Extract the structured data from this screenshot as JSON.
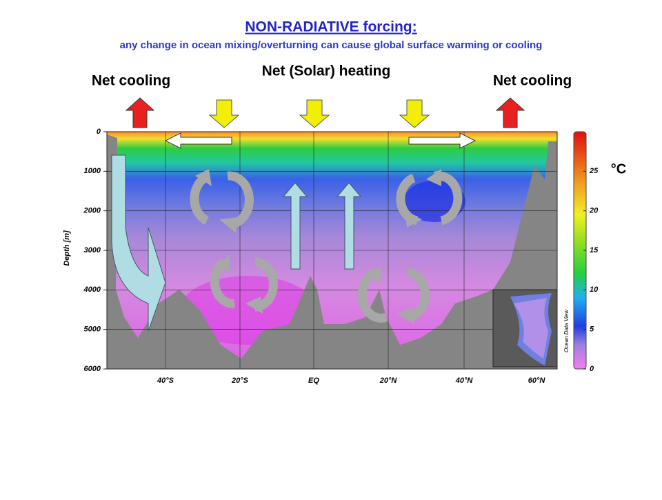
{
  "header": {
    "title": "NON-RADIATIVE forcing:",
    "subtitle": "any change in ocean mixing/overturning can cause global surface warming or cooling"
  },
  "labels": {
    "left": "Net cooling",
    "center": "Net (Solar) heating",
    "right": "Net cooling"
  },
  "section": {
    "y_label": "Depth [m]",
    "ylim": [
      0,
      6000
    ],
    "yticks": [
      0,
      1000,
      2000,
      3000,
      4000,
      5000,
      6000
    ],
    "xticks": [
      "40°S",
      "20°S",
      "EQ",
      "20°N",
      "40°N",
      "60°N"
    ]
  },
  "colorbar": {
    "unit": "°C",
    "lim": [
      0,
      30
    ],
    "ticks": [
      0,
      5,
      10,
      15,
      20,
      25
    ],
    "credit": "Ocean Data View"
  }
}
